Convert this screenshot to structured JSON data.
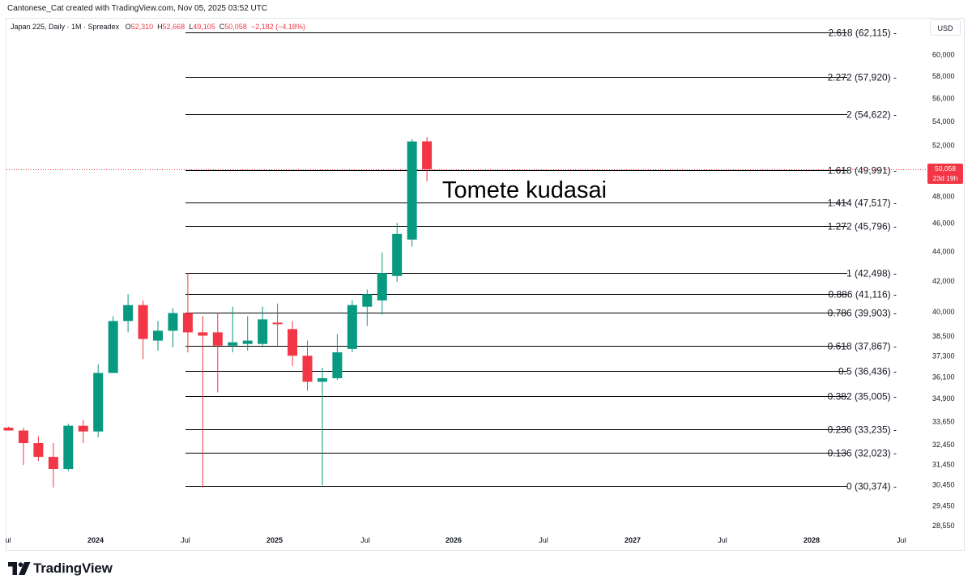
{
  "header": {
    "credit": "Cantonese_Cat created with TradingView.com, Nov 05, 2025 03:52 UTC",
    "symbol": "Japan 225, Daily · 1M · Spreadex",
    "o_label": "O",
    "o_value": "52,310",
    "h_label": "H",
    "h_value": "52,668",
    "l_label": "L",
    "l_value": "49,105",
    "c_label": "C",
    "c_value": "50,058",
    "change": "−2,182 (−4.18%)"
  },
  "currency": "USD",
  "last_price": {
    "value": "50,058",
    "countdown": "23d 19h"
  },
  "brand": "TradingView",
  "colors": {
    "up": "#089981",
    "down": "#f23645",
    "grid_line": "#000000",
    "axis_text": "#131722"
  },
  "chart_data": {
    "type": "candlestick",
    "x_axis_labels": [
      "ul",
      "2024",
      "Jul",
      "2025",
      "Jul",
      "2026",
      "Jul",
      "2027",
      "Jul",
      "2028",
      "Jul"
    ],
    "y_axis_labels": [
      "60,000",
      "58,000",
      "56,000",
      "54,000",
      "52,000",
      "50,000",
      "48,000",
      "46,000",
      "44,000",
      "42,000",
      "40,000",
      "38,500",
      "37,300",
      "36,100",
      "34,900",
      "33,650",
      "32,450",
      "31,450",
      "30,450",
      "29,450",
      "28,550"
    ],
    "y_scale": "log",
    "annotation": "Tomete kudasai",
    "fib_levels": [
      {
        "label": "2.618 (62,115)",
        "value": 62115
      },
      {
        "label": "2.272 (57,920)",
        "value": 57920
      },
      {
        "label": "2 (54,622)",
        "value": 54622
      },
      {
        "label": "1.618 (49,991)",
        "value": 49991
      },
      {
        "label": "1.414 (47,517)",
        "value": 47517
      },
      {
        "label": "1.272 (45,796)",
        "value": 45796
      },
      {
        "label": "1 (42,498)",
        "value": 42498
      },
      {
        "label": "0.886 (41,116)",
        "value": 41116
      },
      {
        "label": "0.786 (39,903)",
        "value": 39903
      },
      {
        "label": "0.618 (37,867)",
        "value": 37867
      },
      {
        "label": "0.5 (36,436)",
        "value": 36436
      },
      {
        "label": "0.382 (35,005)",
        "value": 35005
      },
      {
        "label": "0.236 (33,235)",
        "value": 33235
      },
      {
        "label": "0.136 (32,023)",
        "value": 32023
      },
      {
        "label": "0 (30,374)",
        "value": 30374
      }
    ],
    "candles": [
      {
        "date": "2023-07",
        "o": 33300,
        "h": 33350,
        "l": 33200,
        "c": 33150
      },
      {
        "date": "2023-08",
        "o": 33150,
        "h": 33300,
        "l": 31400,
        "c": 32500
      },
      {
        "date": "2023-09",
        "o": 32500,
        "h": 32850,
        "l": 31600,
        "c": 31800
      },
      {
        "date": "2023-10",
        "o": 31800,
        "h": 32500,
        "l": 30300,
        "c": 31200
      },
      {
        "date": "2023-11",
        "o": 31200,
        "h": 33500,
        "l": 31100,
        "c": 33400
      },
      {
        "date": "2023-12",
        "o": 33400,
        "h": 33700,
        "l": 32500,
        "c": 33100
      },
      {
        "date": "2024-01",
        "o": 33100,
        "h": 36800,
        "l": 32800,
        "c": 36300
      },
      {
        "date": "2024-02",
        "o": 36300,
        "h": 39700,
        "l": 36300,
        "c": 39400
      },
      {
        "date": "2024-03",
        "o": 39400,
        "h": 41100,
        "l": 38700,
        "c": 40400
      },
      {
        "date": "2024-04",
        "o": 40400,
        "h": 40700,
        "l": 37100,
        "c": 38300
      },
      {
        "date": "2024-05",
        "o": 38200,
        "h": 39400,
        "l": 37600,
        "c": 38800
      },
      {
        "date": "2024-06",
        "o": 38800,
        "h": 40200,
        "l": 37800,
        "c": 39900
      },
      {
        "date": "2024-07",
        "o": 39900,
        "h": 42500,
        "l": 37500,
        "c": 38700
      },
      {
        "date": "2024-08",
        "o": 38700,
        "h": 39700,
        "l": 30300,
        "c": 38500
      },
      {
        "date": "2024-09",
        "o": 38700,
        "h": 39900,
        "l": 35200,
        "c": 37900
      },
      {
        "date": "2024-10",
        "o": 37900,
        "h": 40300,
        "l": 37500,
        "c": 38100
      },
      {
        "date": "2024-11",
        "o": 38000,
        "h": 39700,
        "l": 37600,
        "c": 38200
      },
      {
        "date": "2024-12",
        "o": 38000,
        "h": 40300,
        "l": 37800,
        "c": 39500
      },
      {
        "date": "2025-01",
        "o": 39300,
        "h": 40500,
        "l": 37900,
        "c": 39200
      },
      {
        "date": "2025-02",
        "o": 38900,
        "h": 39400,
        "l": 36700,
        "c": 37300
      },
      {
        "date": "2025-03",
        "o": 37300,
        "h": 38200,
        "l": 35300,
        "c": 35800
      },
      {
        "date": "2025-04",
        "o": 35800,
        "h": 36600,
        "l": 30400,
        "c": 36000
      },
      {
        "date": "2025-05",
        "o": 36000,
        "h": 38600,
        "l": 35900,
        "c": 37500
      },
      {
        "date": "2025-06",
        "o": 37700,
        "h": 40700,
        "l": 37500,
        "c": 40400
      },
      {
        "date": "2025-07",
        "o": 40300,
        "h": 41400,
        "l": 39100,
        "c": 41100
      },
      {
        "date": "2025-08",
        "o": 40700,
        "h": 43900,
        "l": 39800,
        "c": 42500
      },
      {
        "date": "2025-09",
        "o": 42300,
        "h": 46000,
        "l": 41900,
        "c": 45200
      },
      {
        "date": "2025-10",
        "o": 44800,
        "h": 52500,
        "l": 44300,
        "c": 52300
      },
      {
        "date": "2025-11",
        "o": 52310,
        "h": 52668,
        "l": 49105,
        "c": 50058
      }
    ]
  }
}
